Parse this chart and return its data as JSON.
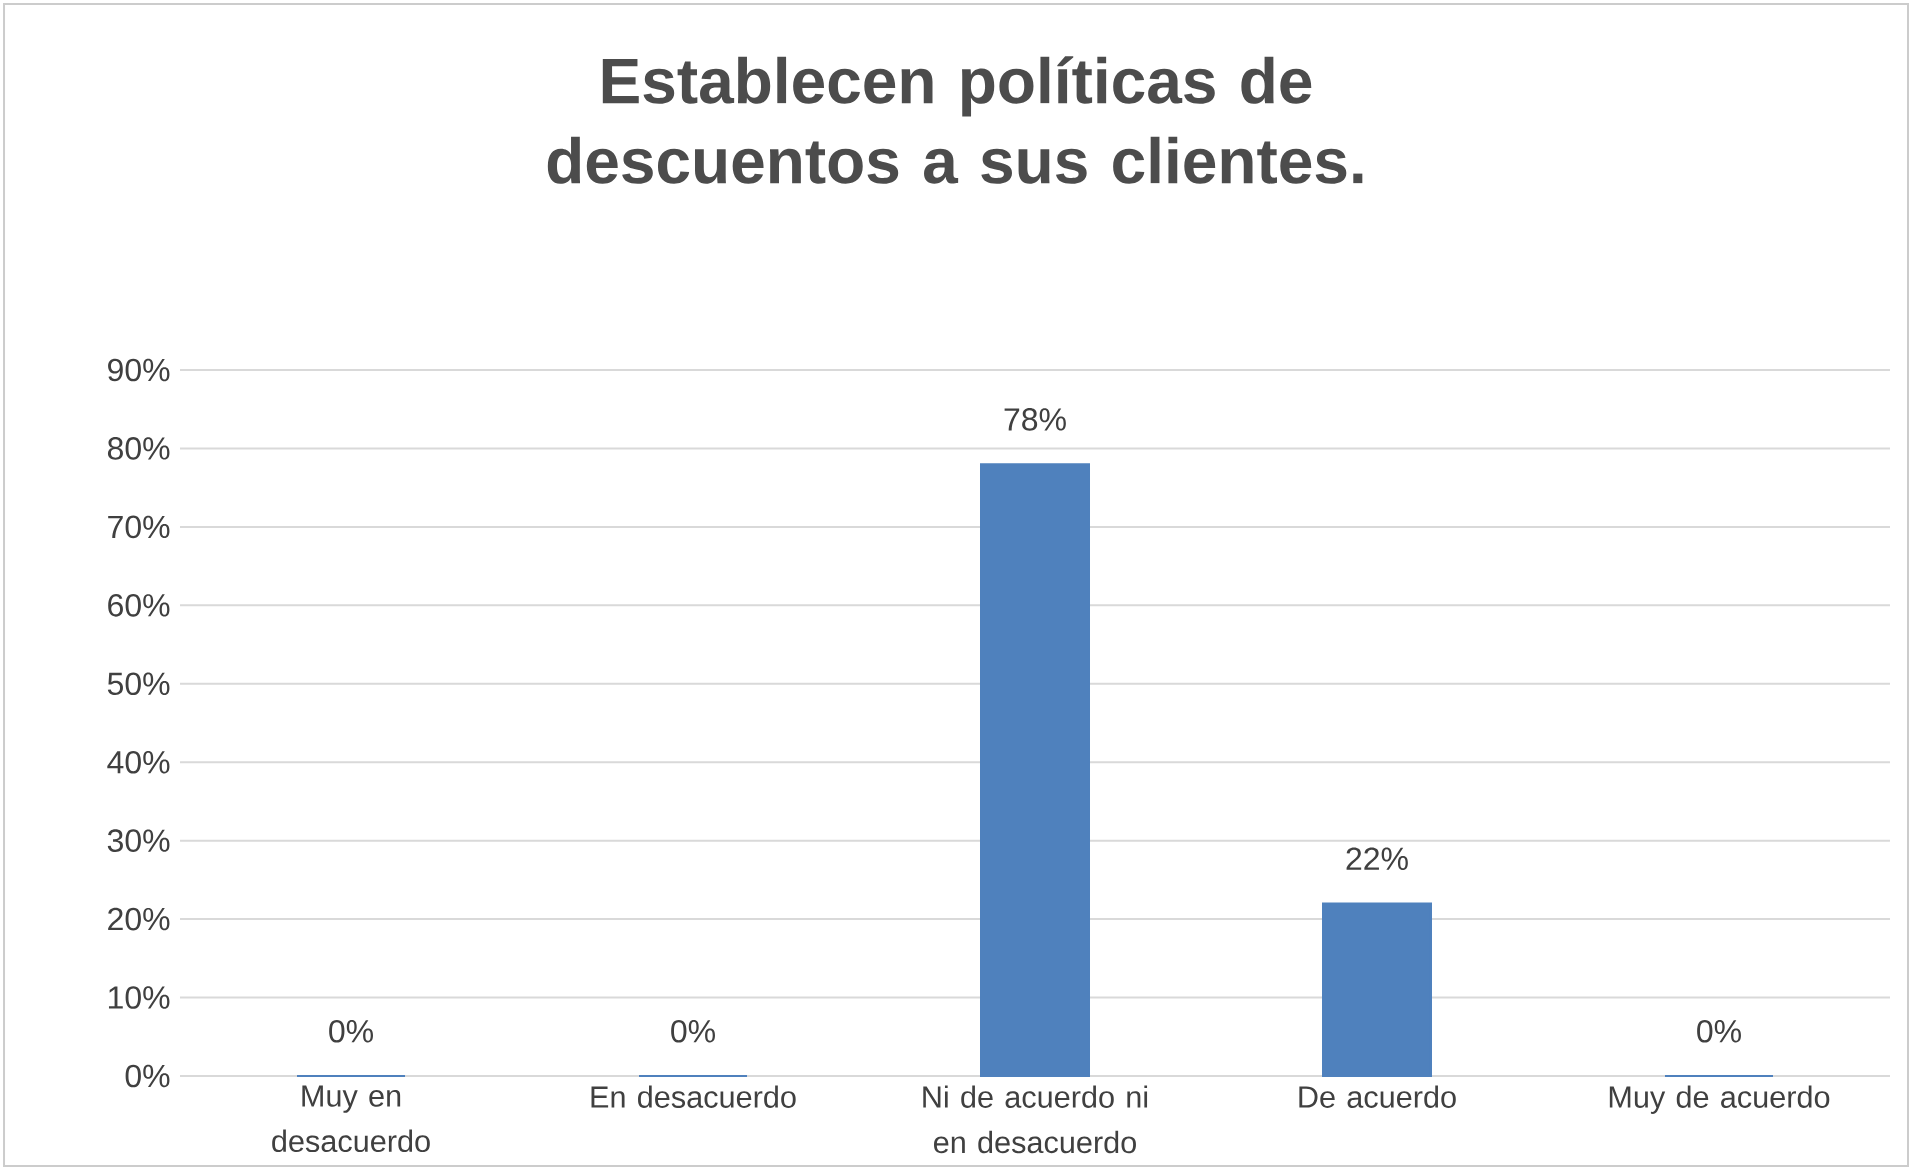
{
  "chart_data": {
    "type": "bar",
    "title": "Establecen políticas de descuentos a sus clientes.",
    "categories": [
      "Muy en desacuerdo",
      "En desacuerdo",
      "Ni de acuerdo ni en desacuerdo",
      "De acuerdo",
      "Muy de acuerdo"
    ],
    "values": [
      0,
      0,
      78,
      22,
      0
    ],
    "value_labels": [
      "0%",
      "0%",
      "78%",
      "22%",
      "0%"
    ],
    "color": "#4f81bd",
    "ylim": [
      0,
      90
    ],
    "yticks": [
      {
        "value": 0,
        "label": "0%"
      },
      {
        "value": 10,
        "label": "10%"
      },
      {
        "value": 20,
        "label": "20%"
      },
      {
        "value": 30,
        "label": "30%"
      },
      {
        "value": 40,
        "label": "40%"
      },
      {
        "value": 50,
        "label": "50%"
      },
      {
        "value": 60,
        "label": "60%"
      },
      {
        "value": 70,
        "label": "70%"
      },
      {
        "value": 80,
        "label": "80%"
      },
      {
        "value": 90,
        "label": "90%"
      }
    ],
    "grid": "y"
  }
}
